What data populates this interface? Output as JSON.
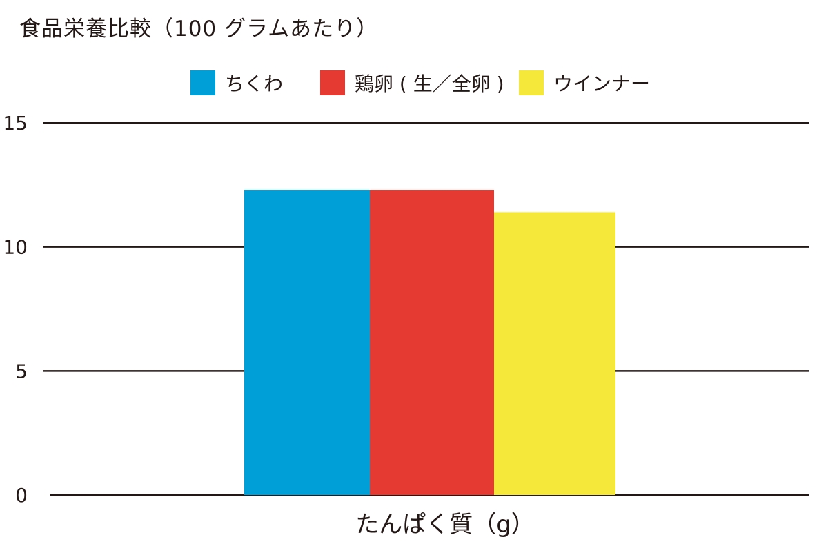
{
  "chart_data": {
    "type": "bar",
    "title": "食品栄養比較（100 グラムあたり）",
    "categories": [
      "たんぱく質（g）"
    ],
    "series": [
      {
        "name": "ちくわ",
        "color": "#009FD7",
        "values": [
          12.3
        ]
      },
      {
        "name": "鶏卵 ( 生／全卵 )",
        "color": "#E53A31",
        "values": [
          12.3
        ]
      },
      {
        "name": "ウインナー",
        "color": "#F5E83A",
        "values": [
          11.4
        ]
      }
    ],
    "xlabel": "たんぱく質（g）",
    "ylabel": "",
    "ylim": [
      0,
      15
    ],
    "yticks": [
      "0",
      "5",
      "10",
      "15"
    ],
    "grid": true,
    "legend_position": "top"
  }
}
